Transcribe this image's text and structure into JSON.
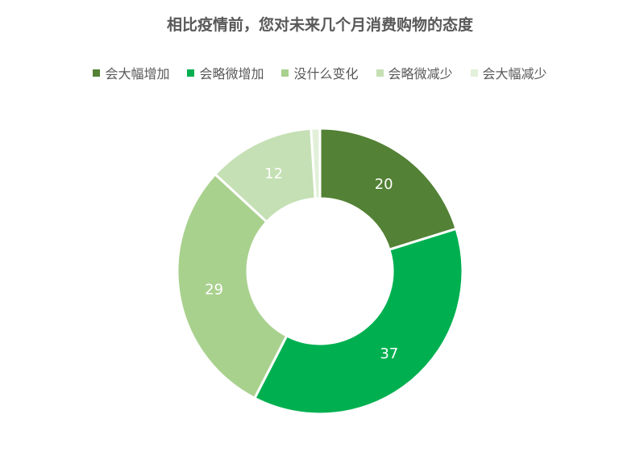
{
  "chart_data": {
    "type": "pie",
    "subtype": "donut",
    "title": "相比疫情前，您对未来几个月消费购物的态度",
    "legend_position": "top",
    "categories": [
      "会大幅增加",
      "会略微增加",
      "没什么变化",
      "会略微减少",
      "会大幅减少"
    ],
    "values": [
      20,
      37,
      29,
      12,
      1
    ],
    "data_labels": [
      "20",
      "37",
      "29",
      "12",
      ""
    ],
    "colors": [
      "#538135",
      "#00b050",
      "#a9d18e",
      "#c5e0b4",
      "#e2f0d9"
    ]
  }
}
